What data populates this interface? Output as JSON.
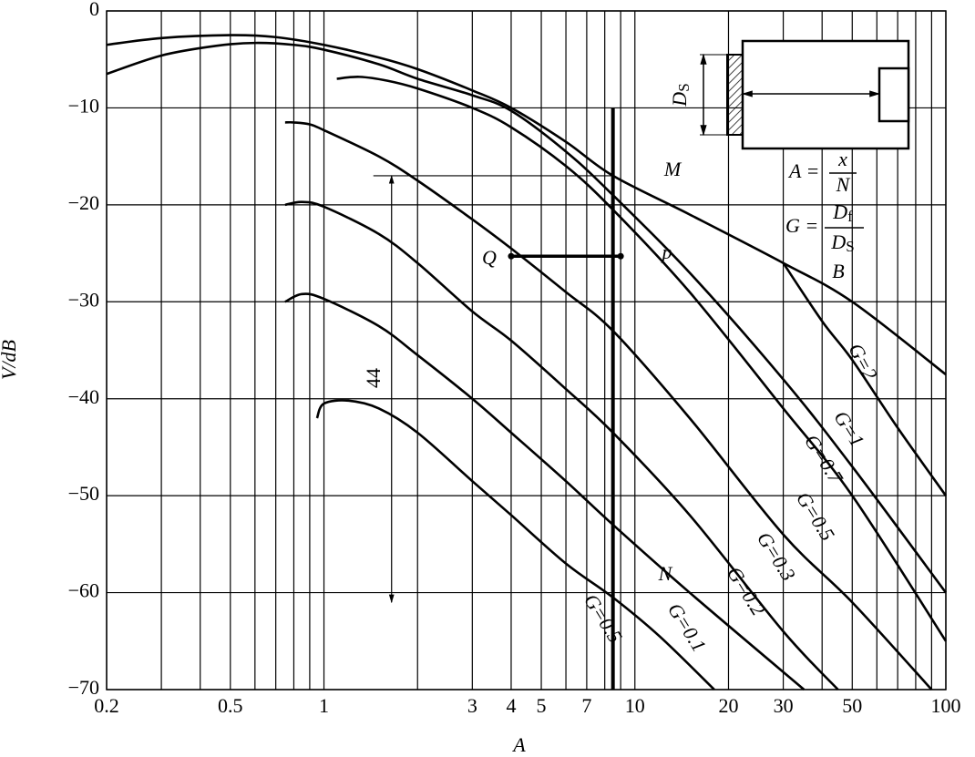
{
  "chart_data": {
    "type": "line",
    "x_label": "A",
    "y_label": "V/dB",
    "log_x": true,
    "grid": true,
    "xlim": [
      0.2,
      100
    ],
    "ylim": [
      -70,
      0
    ],
    "xticks": [
      {
        "value": 0.2,
        "label": "0.2"
      },
      {
        "value": 0.5,
        "label": "0.5"
      },
      1,
      3,
      4,
      5,
      7,
      10,
      20,
      30,
      50,
      100
    ],
    "minor_xticks": [
      0.3,
      0.4,
      0.6,
      0.7,
      0.8,
      0.9,
      2,
      6,
      8,
      9,
      40,
      60,
      70,
      80,
      90
    ],
    "yticks": [
      0,
      {
        "value": -10,
        "label": "−10"
      },
      {
        "value": -20,
        "label": "−20"
      },
      {
        "value": -30,
        "label": "−30"
      },
      {
        "value": -40,
        "label": "−40"
      },
      {
        "value": -50,
        "label": "−50"
      },
      {
        "value": -60,
        "label": "−60"
      },
      {
        "value": -70,
        "label": "−70"
      }
    ],
    "series": [
      {
        "name": "B",
        "color": "#000000",
        "x": [
          0.2,
          0.3,
          0.5,
          0.7,
          1,
          1.5,
          2,
          3,
          4,
          6,
          8.5,
          15,
          30,
          50,
          100
        ],
        "values": [
          -3.5,
          -2.8,
          -2.5,
          -2.7,
          -3.5,
          -4.8,
          -6,
          -8.2,
          -10,
          -13.5,
          -17,
          -21,
          -26,
          -30,
          -37.5
        ]
      },
      {
        "name": "G=2",
        "color": "#000000",
        "x": [
          30,
          40,
          50,
          70,
          100
        ],
        "values": [
          -26,
          -32,
          -36,
          -43,
          -50
        ]
      },
      {
        "name": "G=1",
        "color": "#000000",
        "x": [
          0.2,
          0.3,
          0.45,
          0.6,
          0.8,
          1,
          1.5,
          2,
          3,
          4,
          6,
          8.5,
          15,
          30,
          50,
          100
        ],
        "values": [
          -6.5,
          -4.6,
          -3.6,
          -3.3,
          -3.5,
          -4,
          -5.5,
          -7,
          -8.7,
          -10.3,
          -14.5,
          -19,
          -27,
          -38,
          -47,
          -60
        ]
      },
      {
        "name": "G=0.7",
        "color": "#000000",
        "x": [
          1.1,
          1.3,
          1.6,
          2,
          3,
          4,
          6,
          8.5,
          15,
          30,
          50,
          100
        ],
        "values": [
          -7,
          -6.8,
          -7.2,
          -8,
          -10,
          -12,
          -16,
          -20.5,
          -29,
          -41,
          -50,
          -65
        ]
      },
      {
        "name": "G=0.5",
        "color": "#000000",
        "x": [
          0.75,
          0.8,
          0.9,
          1,
          1.5,
          2,
          3,
          4,
          6,
          8.5,
          15,
          30,
          50,
          90
        ],
        "values": [
          -11.5,
          -11.5,
          -11.7,
          -12.3,
          -15,
          -17.5,
          -21.5,
          -24.5,
          -29,
          -33,
          -42,
          -54,
          -61,
          -70
        ]
      },
      {
        "name": "G=0.3",
        "color": "#000000",
        "x": [
          0.75,
          0.85,
          1,
          1.5,
          2,
          3,
          4,
          6,
          8.5,
          15,
          30,
          45
        ],
        "values": [
          -20,
          -19.7,
          -20.2,
          -23,
          -26,
          -31,
          -34,
          -39,
          -43.5,
          -52,
          -64,
          -70
        ]
      },
      {
        "name": "G=0.2",
        "color": "#000000",
        "x": [
          0.75,
          0.85,
          1,
          1.5,
          2,
          3,
          4,
          6,
          8.5,
          15,
          35
        ],
        "values": [
          -30,
          -29.2,
          -29.7,
          -32.5,
          -35.5,
          -40,
          -43.5,
          -48.5,
          -53,
          -60,
          -70
        ]
      },
      {
        "name": "G=0.1",
        "color": "#000000",
        "x": [
          0.95,
          1,
          1.2,
          1.5,
          2,
          3,
          4,
          6,
          8.5,
          12,
          18
        ],
        "values": [
          -42,
          -40.5,
          -40.2,
          -41,
          -43.5,
          -48.5,
          -52,
          -57,
          -60.5,
          -64.5,
          -70
        ]
      }
    ],
    "reference": {
      "vertical_x": 8.5,
      "vertical_y": [
        -10,
        -70
      ],
      "qp_y": -25.3,
      "qp_x": [
        4,
        9
      ],
      "arrow_x": 1.65,
      "arrow_y": [
        -17,
        -61
      ]
    },
    "annotations": [
      "M",
      "N",
      "Q",
      "p",
      "44",
      "G=0.5"
    ],
    "inset": {
      "ds": "D",
      "ds_sub": "S",
      "formula_a": {
        "lhs": "A =",
        "num": "x",
        "den": "N"
      },
      "formula_g": {
        "lhs": "G =",
        "num": "D",
        "num_sub": "f",
        "den": "D",
        "den_sub": "S"
      }
    }
  }
}
